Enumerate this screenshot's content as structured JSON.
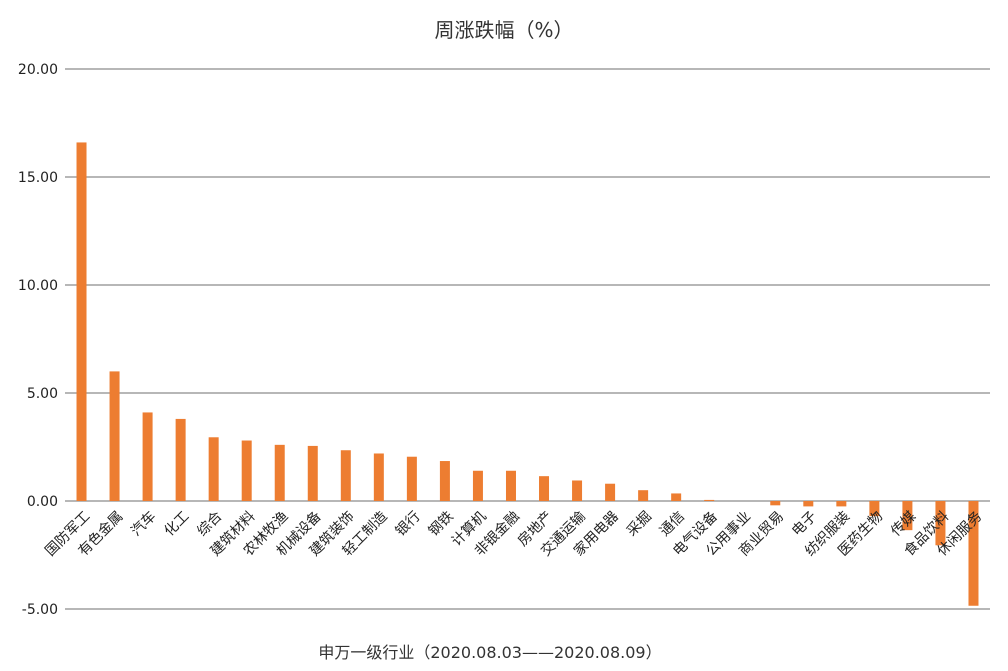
{
  "chart_data": {
    "type": "bar",
    "title": "周涨跌幅（%）",
    "xlabel": "申万一级行业（2020.08.03——2020.08.09）",
    "ylabel": "",
    "ylim": [
      -5,
      20
    ],
    "yticks": [
      "20.00",
      "15.00",
      "10.00",
      "5.00",
      "0.00",
      "-5.00"
    ],
    "grid": true,
    "bar_color": "#ed7d31",
    "categories": [
      "国防军工",
      "有色金属",
      "汽车",
      "化工",
      "综合",
      "建筑材料",
      "农林牧渔",
      "机械设备",
      "建筑装饰",
      "轻工制造",
      "银行",
      "钢铁",
      "计算机",
      "非银金融",
      "房地产",
      "交通运输",
      "家用电器",
      "采掘",
      "通信",
      "电气设备",
      "公用事业",
      "商业贸易",
      "电子",
      "纺织服装",
      "医药生物",
      "传媒",
      "食品饮料",
      "休闲服务"
    ],
    "values": [
      16.6,
      6.0,
      4.1,
      3.8,
      2.95,
      2.8,
      2.6,
      2.55,
      2.35,
      2.2,
      2.05,
      1.85,
      1.4,
      1.4,
      1.15,
      0.95,
      0.8,
      0.5,
      0.35,
      0.05,
      0.0,
      -0.2,
      -0.25,
      -0.25,
      -0.7,
      -1.35,
      -2.05,
      -4.85
    ]
  }
}
